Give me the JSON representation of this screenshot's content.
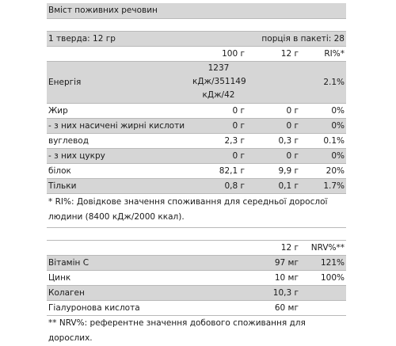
{
  "title": "Вміст поживних речовин",
  "serving": {
    "left": "1 тверда: 12 гр",
    "right": "порція в пакеті: 28"
  },
  "nutrition_table": {
    "headers": [
      "",
      "100 г",
      "12 г",
      "RI%*"
    ],
    "rows": [
      {
        "name": "Енергія",
        "per100": "1237 кДж/351149 кДж/42 ккал ккал",
        "per12": "",
        "ri": "2.1%"
      },
      {
        "name": "Жир",
        "per100": "0 г",
        "per12": "0 г",
        "ri": "0%"
      },
      {
        "name": "- з них насичені жирні кислоти",
        "per100": "0 г",
        "per12": "0 г",
        "ri": "0%"
      },
      {
        "name": "вуглевод",
        "per100": "2,3 г",
        "per12": "0,3 г",
        "ri": "0.1%"
      },
      {
        "name": "- з них цукру",
        "per100": "0 г",
        "per12": "0 г",
        "ri": "0%"
      },
      {
        "name": "білок",
        "per100": "82,1 г",
        "per12": "9,9 г",
        "ri": "20%"
      },
      {
        "name": "Тільки",
        "per100": "0,8 г",
        "per12": "0,1 г",
        "ri": "1.7%"
      }
    ],
    "footnote": "* RI%: Довідкове значення споживання для середньої дорослої людини (8400 кДж/2000 ккал)."
  },
  "vitamin_table": {
    "headers": [
      "",
      "12 г",
      "NRV%**"
    ],
    "rows": [
      {
        "name": "Вітамін C",
        "per12": "97 мг",
        "nrv": "121%"
      },
      {
        "name": "Цинк",
        "per12": "10 мг",
        "nrv": "100%"
      },
      {
        "name": "Колаген",
        "per12": "10,3 г",
        "nrv": ""
      },
      {
        "name": "Гіалуронова кислота",
        "per12": "60 мг",
        "nrv": ""
      }
    ],
    "footnote": "** NRV%: референтне значення добового споживання для дорослих."
  }
}
